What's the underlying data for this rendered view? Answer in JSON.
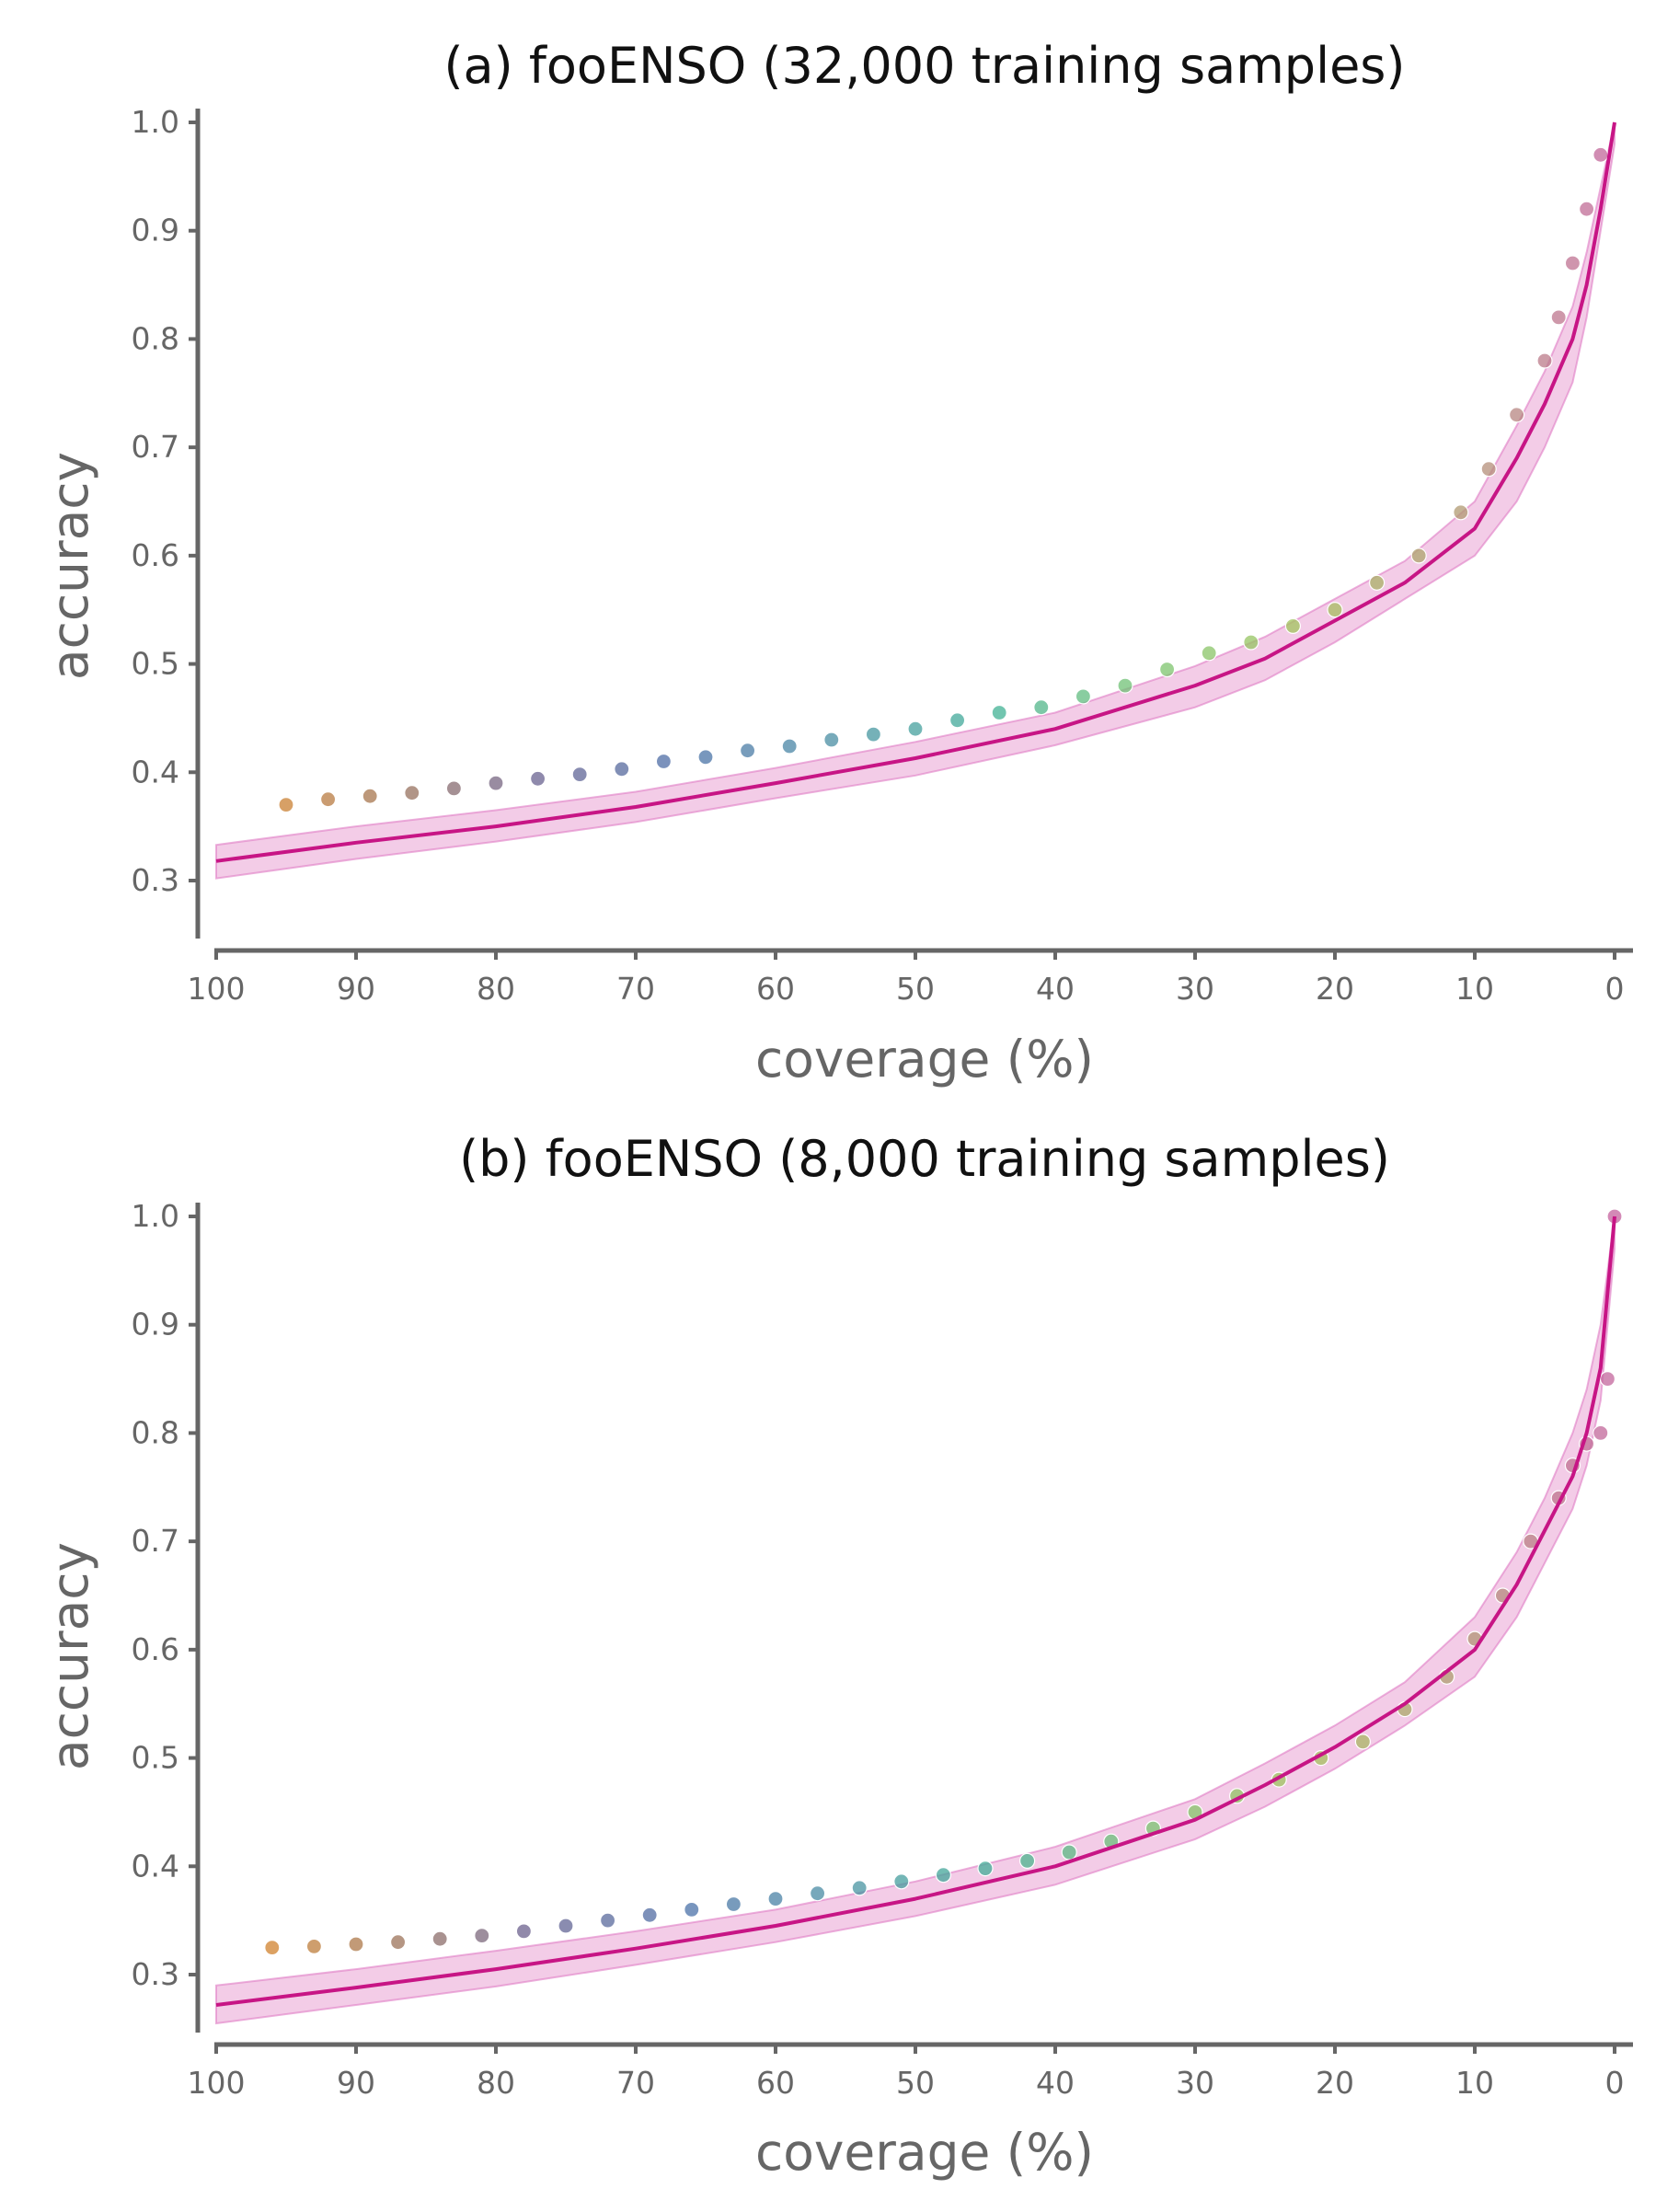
{
  "chart_data": [
    {
      "type": "scatter",
      "title": "(a) fooENSO (32,000 training samples)",
      "xlabel": "coverage (%)",
      "ylabel": "accuracy",
      "xlim": [
        100,
        0
      ],
      "ylim": [
        0.3,
        1.0
      ],
      "x_reversed": true,
      "xticks": [
        "100",
        "90",
        "80",
        "70",
        "60",
        "50",
        "40",
        "30",
        "20",
        "10",
        "0"
      ],
      "yticks": [
        "0.3",
        "0.4",
        "0.5",
        "0.6",
        "0.7",
        "0.8",
        "0.9",
        "1.0"
      ],
      "grid": false,
      "series": [
        {
          "kind": "scatter",
          "color_scale": [
            "#e8891c",
            "#a6764f",
            "#6b628e",
            "#4b6fa8",
            "#4a8fa3",
            "#3fb096",
            "#79c470",
            "#a5c45a",
            "#b09a72",
            "#c4629e"
          ],
          "x": [
            95,
            92,
            89,
            86,
            83,
            80,
            77,
            74,
            71,
            68,
            65,
            62,
            59,
            56,
            53,
            50,
            47,
            44,
            41,
            38,
            35,
            32,
            29,
            26,
            23,
            20,
            17,
            14,
            11,
            9,
            7,
            5,
            4,
            3,
            2,
            1
          ],
          "y": [
            0.37,
            0.375,
            0.378,
            0.381,
            0.385,
            0.39,
            0.394,
            0.398,
            0.403,
            0.41,
            0.414,
            0.42,
            0.424,
            0.43,
            0.435,
            0.44,
            0.448,
            0.455,
            0.46,
            0.47,
            0.48,
            0.495,
            0.51,
            0.52,
            0.535,
            0.55,
            0.575,
            0.6,
            0.64,
            0.68,
            0.73,
            0.78,
            0.82,
            0.87,
            0.92,
            0.97
          ]
        },
        {
          "kind": "line",
          "color": "#c71585",
          "x": [
            100,
            90,
            80,
            70,
            60,
            50,
            40,
            30,
            25,
            20,
            15,
            10,
            7,
            5,
            3,
            2,
            1,
            0
          ],
          "y": [
            0.318,
            0.335,
            0.35,
            0.368,
            0.39,
            0.413,
            0.44,
            0.48,
            0.505,
            0.54,
            0.575,
            0.625,
            0.69,
            0.74,
            0.8,
            0.85,
            0.92,
            1.0
          ],
          "band_low": [
            0.302,
            0.32,
            0.336,
            0.354,
            0.376,
            0.397,
            0.425,
            0.46,
            0.485,
            0.52,
            0.56,
            0.6,
            0.65,
            0.7,
            0.76,
            0.82,
            0.9,
            0.98
          ],
          "band_high": [
            0.333,
            0.35,
            0.365,
            0.382,
            0.404,
            0.428,
            0.455,
            0.498,
            0.525,
            0.56,
            0.595,
            0.65,
            0.72,
            0.77,
            0.83,
            0.88,
            0.94,
            1.0
          ]
        }
      ]
    },
    {
      "type": "scatter",
      "title": "(b) fooENSO (8,000 training samples)",
      "xlabel": "coverage (%)",
      "ylabel": "accuracy",
      "xlim": [
        100,
        0
      ],
      "ylim": [
        0.3,
        1.0
      ],
      "x_reversed": true,
      "xticks": [
        "100",
        "90",
        "80",
        "70",
        "60",
        "50",
        "40",
        "30",
        "20",
        "10",
        "0"
      ],
      "yticks": [
        "0.3",
        "0.4",
        "0.5",
        "0.6",
        "0.7",
        "0.8",
        "0.9",
        "1.0"
      ],
      "grid": false,
      "series": [
        {
          "kind": "scatter",
          "color_scale": [
            "#e8891c",
            "#a6764f",
            "#6b628e",
            "#4b6fa8",
            "#4a8fa3",
            "#3fb096",
            "#79c470",
            "#a5c45a",
            "#b09a72",
            "#c4629e"
          ],
          "x": [
            96,
            93,
            90,
            87,
            84,
            81,
            78,
            75,
            72,
            69,
            66,
            63,
            60,
            57,
            54,
            51,
            48,
            45,
            42,
            39,
            36,
            33,
            30,
            27,
            24,
            21,
            18,
            15,
            12,
            10,
            8,
            6,
            4,
            3,
            2,
            1,
            0.5,
            0
          ],
          "y": [
            0.325,
            0.326,
            0.328,
            0.33,
            0.333,
            0.336,
            0.34,
            0.345,
            0.35,
            0.355,
            0.36,
            0.365,
            0.37,
            0.375,
            0.38,
            0.386,
            0.392,
            0.398,
            0.405,
            0.413,
            0.423,
            0.435,
            0.45,
            0.465,
            0.48,
            0.5,
            0.515,
            0.545,
            0.575,
            0.61,
            0.65,
            0.7,
            0.74,
            0.77,
            0.79,
            0.8,
            0.85,
            1.0
          ]
        },
        {
          "kind": "line",
          "color": "#c71585",
          "x": [
            100,
            90,
            80,
            70,
            60,
            50,
            40,
            30,
            25,
            20,
            15,
            10,
            7,
            5,
            3,
            2,
            1,
            0
          ],
          "y": [
            0.272,
            0.288,
            0.305,
            0.324,
            0.345,
            0.37,
            0.4,
            0.443,
            0.475,
            0.51,
            0.55,
            0.6,
            0.66,
            0.71,
            0.76,
            0.8,
            0.86,
            1.0
          ],
          "band_low": [
            0.255,
            0.272,
            0.289,
            0.309,
            0.33,
            0.354,
            0.383,
            0.425,
            0.455,
            0.49,
            0.53,
            0.575,
            0.63,
            0.68,
            0.73,
            0.77,
            0.83,
            0.97
          ],
          "band_high": [
            0.29,
            0.305,
            0.322,
            0.34,
            0.36,
            0.386,
            0.418,
            0.462,
            0.495,
            0.53,
            0.57,
            0.63,
            0.69,
            0.74,
            0.8,
            0.84,
            0.9,
            1.0
          ]
        }
      ]
    }
  ]
}
